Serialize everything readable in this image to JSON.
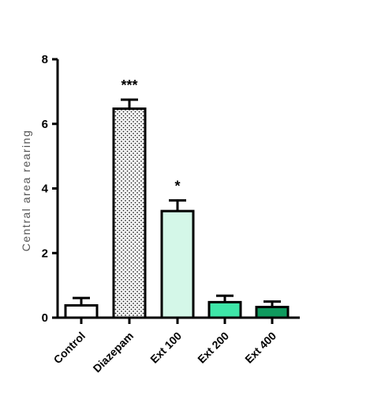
{
  "chart_data": {
    "type": "bar",
    "categories": [
      "Control",
      "Diazepam",
      "Ext 100",
      "Ext 200",
      "Ext 400"
    ],
    "values": [
      0.38,
      6.47,
      3.3,
      0.48,
      0.33
    ],
    "errors": [
      0.23,
      0.28,
      0.33,
      0.2,
      0.17
    ],
    "significance": [
      "",
      "***",
      "*",
      "",
      ""
    ],
    "fills": [
      "#ffffff",
      "dotted",
      "#d4f7e8",
      "#3ee6a8",
      "#0f9a5e"
    ],
    "ylabel": "Central area rearing",
    "xlabel": "",
    "title": "",
    "ylim": [
      0,
      8
    ],
    "yticks": [
      0,
      2,
      4,
      6,
      8
    ],
    "grid": false
  }
}
